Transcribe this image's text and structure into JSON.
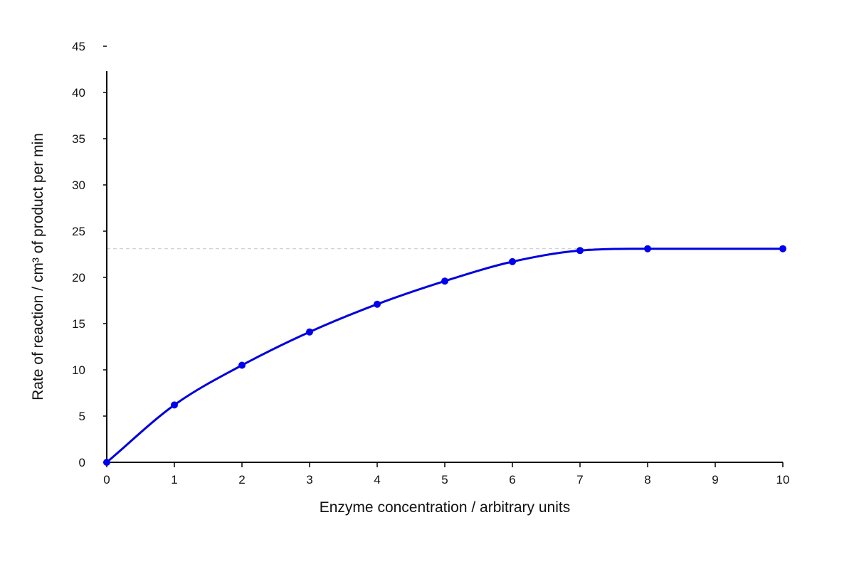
{
  "chart_data": {
    "type": "line",
    "title": "",
    "xlabel": "Enzyme concentration / arbitrary units",
    "ylabel": "Rate of reaction / cm³ of product per min",
    "xlim": [
      0,
      10
    ],
    "ylim": [
      0,
      45
    ],
    "x_ticks": [
      "0",
      "1",
      "2",
      "3",
      "4",
      "5",
      "6",
      "7",
      "8",
      "9",
      "10"
    ],
    "y_ticks": [
      "0",
      "5",
      "10",
      "15",
      "20",
      "25",
      "30",
      "35",
      "40",
      "45"
    ],
    "grid": false,
    "legend": "none",
    "series": [
      {
        "x": [
          0,
          1,
          2,
          3,
          4,
          5,
          6,
          7,
          8,
          10
        ],
        "values": [
          0,
          6.2,
          10.5,
          14.1,
          17.1,
          19.6,
          21.7,
          22.9,
          23.1,
          23.1
        ]
      }
    ],
    "reference_line": {
      "y": 23.1,
      "style": "dashed"
    },
    "colors": {
      "line": "#0000dd",
      "points": "#0000ee",
      "reference": "#cccccc",
      "axis": "#000000"
    }
  }
}
